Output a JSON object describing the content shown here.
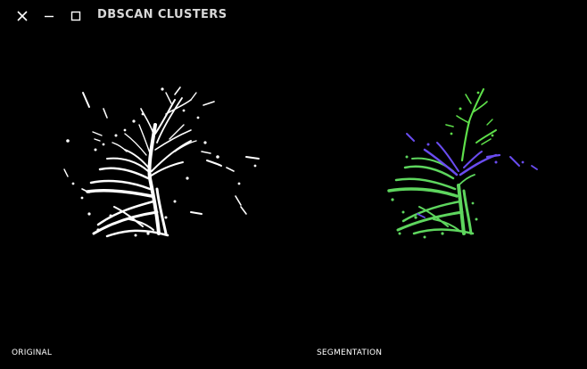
{
  "window": {
    "title": "DBSCAN CLUSTERS",
    "controls": [
      "close",
      "minimize",
      "maximize"
    ]
  },
  "panels": {
    "original": {
      "caption": "ORIGINAL",
      "point_color": "#ffffff"
    },
    "segmentation": {
      "caption": "SEGMENTATION",
      "cluster_colors": [
        "#5ed65e",
        "#6a4cf0",
        "#5ee04a"
      ]
    }
  },
  "colors": {
    "background": "#000000",
    "title_text": "#d8d8d8",
    "caption_text": "#ffffff"
  }
}
